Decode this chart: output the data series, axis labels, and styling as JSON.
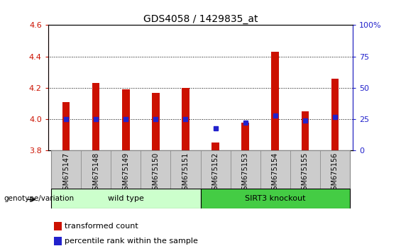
{
  "title": "GDS4058 / 1429835_at",
  "samples": [
    "GSM675147",
    "GSM675148",
    "GSM675149",
    "GSM675150",
    "GSM675151",
    "GSM675152",
    "GSM675153",
    "GSM675154",
    "GSM675155",
    "GSM675156"
  ],
  "transformed_count": [
    4.11,
    4.23,
    4.19,
    4.17,
    4.2,
    3.85,
    3.98,
    4.43,
    4.05,
    4.26
  ],
  "percentile_rank": [
    25,
    25,
    25,
    25,
    25,
    18,
    22,
    28,
    24,
    27
  ],
  "ylim_left": [
    3.8,
    4.6
  ],
  "ylim_right": [
    0,
    100
  ],
  "yticks_left": [
    3.8,
    4.0,
    4.2,
    4.4,
    4.6
  ],
  "yticks_right": [
    0,
    25,
    50,
    75,
    100
  ],
  "ytick_labels_right": [
    "0",
    "25",
    "50",
    "75",
    "100%"
  ],
  "bar_color": "#cc1100",
  "dot_color": "#2222cc",
  "wild_type_label": "wild type",
  "knockout_label": "SIRT3 knockout",
  "genotype_label": "genotype/variation",
  "legend_bar_label": "transformed count",
  "legend_dot_label": "percentile rank within the sample",
  "wild_type_color": "#ccffcc",
  "knockout_color": "#44cc44",
  "xticklabel_bg": "#cccccc",
  "bar_bottom": 3.8,
  "bar_width": 0.25,
  "n_samples": 10,
  "n_wild_type": 5,
  "title_fontsize": 10,
  "tick_fontsize": 8,
  "label_fontsize": 8
}
